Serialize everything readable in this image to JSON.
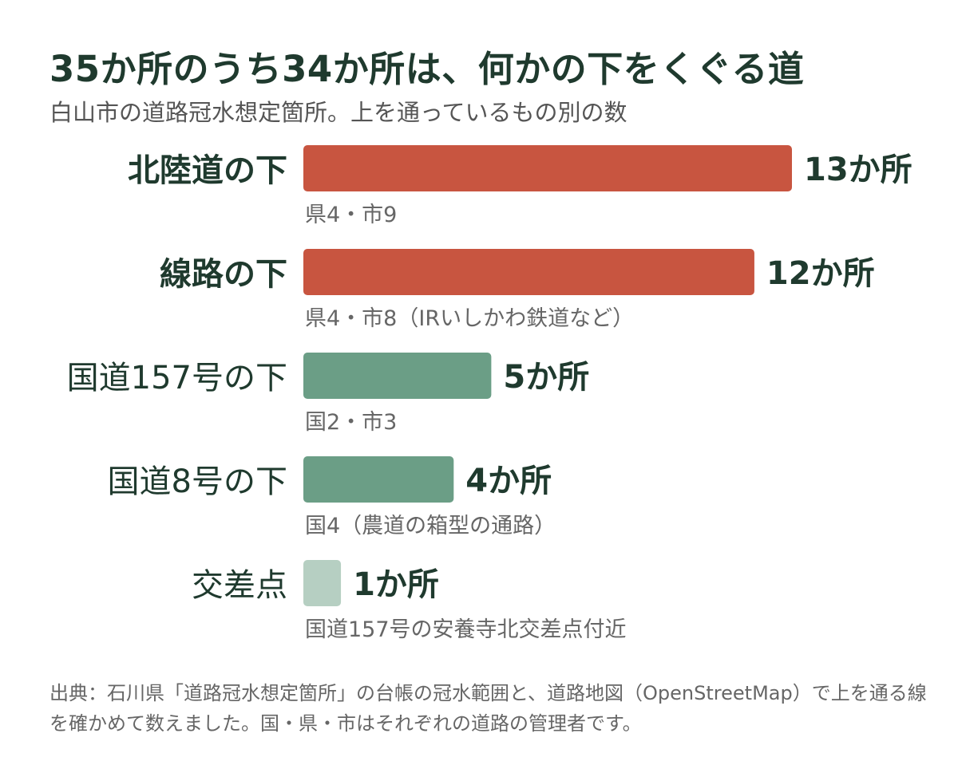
{
  "title": "35か所のうち34か所は、何かの下をくぐる道",
  "subtitle": "白山市の道路冠水想定箇所。上を通っているもの別の数",
  "footer": "出典：石川県「道路冠水想定箇所」の台帳の冠水範囲と、道路地図（OpenStreetMap）で上を通る線を確かめて数えました。国・県・市はそれぞれの道路の管理者です。",
  "colors": {
    "highlight": "#c85540",
    "mid": "#6b9e86",
    "light": "#b6cfc2",
    "label_text": "#1f3a2e",
    "note_text": "#666666"
  },
  "chart_data": {
    "type": "bar",
    "orientation": "horizontal",
    "title": "35か所のうち34か所は、何かの下をくぐる道",
    "subtitle": "白山市の道路冠水想定箇所。上を通っているもの別の数",
    "categories": [
      "北陸道の下",
      "線路の下",
      "国道157号の下",
      "国道8号の下",
      "交差点"
    ],
    "values": [
      13,
      12,
      5,
      4,
      1
    ],
    "value_labels": [
      "13か所",
      "12か所",
      "5か所",
      "4か所",
      "1か所"
    ],
    "notes": [
      "県4・市9",
      "県4・市8（IRいしかわ鉄道など）",
      "国2・市3",
      "国4（農道の箱型の通路）",
      "国道157号の安養寺北交差点付近"
    ],
    "bar_colors": [
      "#c85540",
      "#c85540",
      "#6b9e86",
      "#6b9e86",
      "#b6cfc2"
    ],
    "label_bold": [
      true,
      true,
      false,
      false,
      false
    ],
    "xlim": [
      0,
      13
    ],
    "grid": false
  }
}
